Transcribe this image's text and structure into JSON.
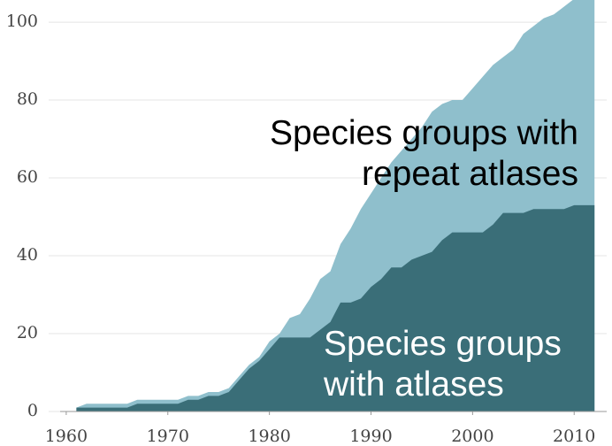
{
  "chart_data": {
    "type": "area",
    "x": [
      1961,
      1962,
      1963,
      1964,
      1965,
      1966,
      1967,
      1968,
      1969,
      1970,
      1971,
      1972,
      1973,
      1974,
      1975,
      1976,
      1977,
      1978,
      1979,
      1980,
      1981,
      1982,
      1983,
      1984,
      1985,
      1986,
      1987,
      1988,
      1989,
      1990,
      1991,
      1992,
      1993,
      1994,
      1995,
      1996,
      1997,
      1998,
      1999,
      2000,
      2001,
      2002,
      2003,
      2004,
      2005,
      2006,
      2007,
      2008,
      2009,
      2010,
      2011,
      2012
    ],
    "series": [
      {
        "name": "Species groups with repeat atlases",
        "color": "#8fbfcc",
        "values": [
          1,
          2,
          2,
          2,
          2,
          2,
          3,
          3,
          3,
          3,
          3,
          4,
          4,
          5,
          5,
          6,
          9,
          12,
          14,
          18,
          20,
          24,
          25,
          29,
          34,
          36,
          43,
          47,
          52,
          56,
          60,
          64,
          67,
          70,
          73,
          77,
          79,
          80,
          80,
          83,
          86,
          89,
          91,
          93,
          97,
          99,
          101,
          102,
          104,
          106,
          106,
          106
        ]
      },
      {
        "name": "Species groups with atlases",
        "color": "#3a6e78",
        "values": [
          1,
          1,
          1,
          1,
          1,
          1,
          2,
          2,
          2,
          2,
          2,
          3,
          3,
          4,
          4,
          5,
          8,
          11,
          13,
          16,
          19,
          19,
          19,
          19,
          21,
          23,
          28,
          28,
          29,
          32,
          34,
          37,
          37,
          39,
          40,
          41,
          44,
          46,
          46,
          46,
          46,
          48,
          51,
          51,
          51,
          52,
          52,
          52,
          52,
          53,
          53,
          53
        ]
      }
    ],
    "xlim": [
      1959.4,
      2013.2
    ],
    "ylim": [
      0,
      105.7
    ],
    "xticks": [
      1960,
      1970,
      1980,
      1990,
      2000,
      2010
    ],
    "yticks": [
      0,
      20,
      40,
      60,
      80,
      100
    ],
    "grid": true
  }
}
